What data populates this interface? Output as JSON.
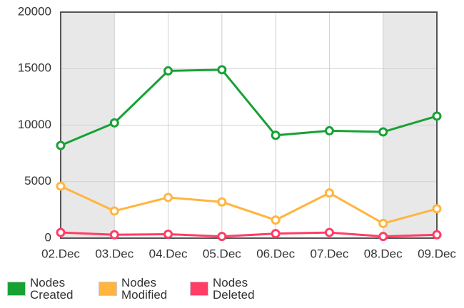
{
  "chart_data": {
    "type": "line",
    "categories": [
      "02.Dec",
      "03.Dec",
      "04.Dec",
      "05.Dec",
      "06.Dec",
      "07.Dec",
      "08.Dec",
      "09.Dec"
    ],
    "series": [
      {
        "name": "Nodes Created",
        "color": "#17a135",
        "values": [
          8200,
          10200,
          14800,
          14900,
          9100,
          9500,
          9400,
          10800
        ]
      },
      {
        "name": "Nodes Modified",
        "color": "#ffb53f",
        "values": [
          4600,
          2400,
          3600,
          3200,
          1600,
          4000,
          1300,
          2600
        ]
      },
      {
        "name": "Nodes Deleted",
        "color": "#ff3d65",
        "values": [
          500,
          300,
          350,
          150,
          400,
          500,
          150,
          300
        ]
      }
    ],
    "ylim": [
      0,
      20000
    ],
    "yticks": [
      0,
      5000,
      10000,
      15000,
      20000
    ],
    "grid": true
  }
}
